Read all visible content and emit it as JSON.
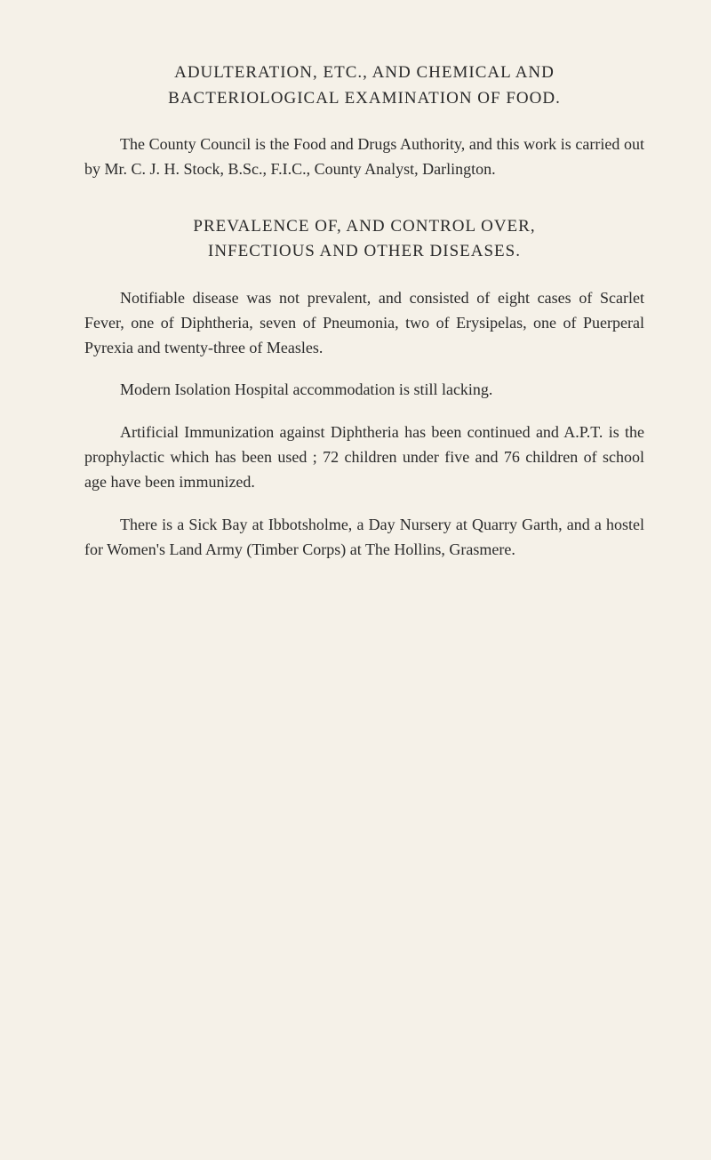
{
  "section1": {
    "heading_line1": "ADULTERATION, ETC., AND CHEMICAL AND",
    "heading_line2": "BACTERIOLOGICAL EXAMINATION OF FOOD.",
    "para1": "The County Council is the Food and Drugs Authority, and this work is carried out by Mr. C. J. H. Stock, B.Sc., F.I.C., County Analyst, Darlington."
  },
  "section2": {
    "heading_line1": "PREVALENCE OF, AND CONTROL OVER,",
    "heading_line2": "INFECTIOUS AND OTHER DISEASES.",
    "para1": "Notifiable disease was not prevalent, and consisted of eight cases of Scarlet Fever, one of Diphtheria, seven of Pneumonia, two of Erysipelas, one of Puerperal Pyrexia and twenty-three of Measles.",
    "para2": "Modern Isolation Hospital accommodation is still lacking.",
    "para3": "Artificial Immunization against Diphtheria has been con­tinued and A.P.T. is the prophylactic which has been used ; 72 children under five and 76 children of school age have been immunized.",
    "para4": "There is a Sick Bay at Ibbotsholme, a Day Nursery at Quarry Garth, and a hostel for Women's Land Army (Timber Corps) at The Hollins, Grasmere."
  }
}
